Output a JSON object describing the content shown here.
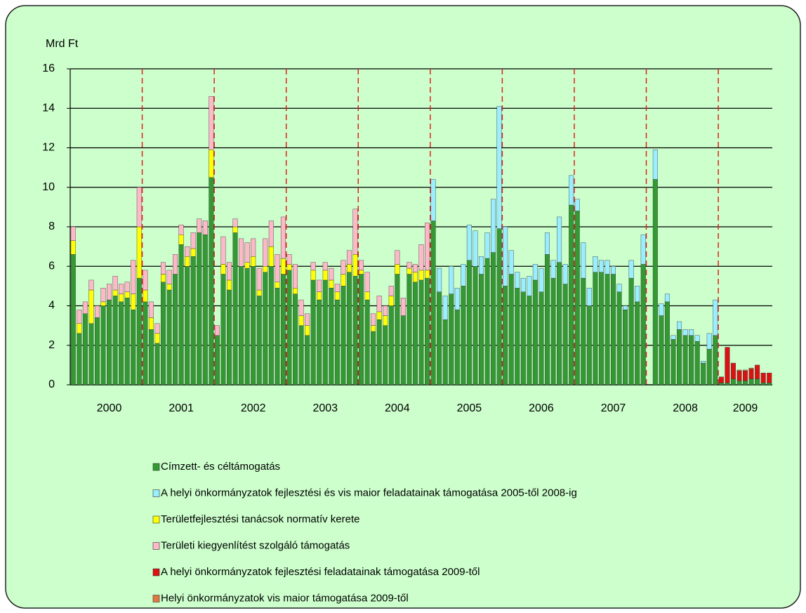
{
  "chart_data": {
    "type": "bar",
    "stacked": true,
    "y_label": "Mrd Ft",
    "ylim": [
      0,
      16
    ],
    "yticks": [
      0,
      2,
      4,
      6,
      8,
      10,
      12,
      14,
      16
    ],
    "grid": true,
    "legend": "bottom",
    "categories": [
      null,
      null,
      null,
      null,
      null,
      null,
      "2000",
      null,
      null,
      null,
      null,
      null,
      null,
      null,
      null,
      null,
      null,
      null,
      "2001",
      null,
      null,
      null,
      null,
      null,
      null,
      null,
      null,
      null,
      null,
      null,
      "2002",
      null,
      null,
      null,
      null,
      null,
      null,
      null,
      null,
      null,
      null,
      null,
      "2003",
      null,
      null,
      null,
      null,
      null,
      null,
      null,
      null,
      null,
      null,
      null,
      "2004",
      null,
      null,
      null,
      null,
      null,
      null,
      null,
      null,
      null,
      null,
      null,
      "2005",
      null,
      null,
      null,
      null,
      null,
      null,
      null,
      null,
      null,
      null,
      null,
      "2006",
      null,
      null,
      null,
      null,
      null,
      null,
      null,
      null,
      null,
      null,
      null,
      "2007",
      null,
      null,
      null,
      null,
      null,
      null,
      null,
      null,
      null,
      null,
      null,
      "2008",
      null,
      null,
      null,
      null,
      null,
      null,
      null,
      null,
      null,
      "2009",
      null,
      null,
      null,
      null
    ],
    "series": [
      {
        "name": "Címzett- és céltámogatás",
        "color": "#339933",
        "values": [
          6.6,
          2.6,
          3.6,
          3.1,
          3.4,
          4.0,
          4.3,
          4.5,
          4.2,
          4.4,
          3.8,
          5.4,
          4.2,
          2.8,
          2.1,
          5.2,
          4.8,
          5.6,
          7.1,
          6.0,
          6.5,
          7.7,
          7.6,
          10.5,
          2.5,
          5.6,
          4.8,
          7.7,
          6.0,
          5.9,
          6.0,
          4.5,
          5.7,
          6.0,
          4.9,
          5.6,
          5.8,
          4.6,
          3.0,
          2.5,
          5.3,
          4.3,
          5.3,
          4.9,
          4.3,
          5.0,
          5.7,
          5.5,
          5.6,
          4.3,
          2.7,
          3.3,
          3.0,
          4.0,
          5.6,
          3.5,
          5.6,
          5.2,
          5.3,
          5.4,
          8.3,
          4.7,
          3.3,
          4.6,
          3.8,
          5.0,
          6.3,
          6.0,
          5.6,
          6.4,
          6.7,
          7.9,
          5.0,
          5.6,
          4.9,
          4.7,
          4.5,
          5.3,
          4.7,
          6.6,
          5.4,
          6.2,
          5.1,
          9.1,
          8.8,
          5.4,
          4.0,
          5.7,
          5.7,
          5.6,
          5.6,
          4.7,
          3.8,
          5.4,
          4.2,
          6.1,
          0,
          10.4,
          3.5,
          4.2,
          2.3,
          2.8,
          2.5,
          2.5,
          2.2,
          1.1,
          1.8,
          2.5,
          0.1,
          0.1,
          0.3,
          0.2,
          0.2,
          0.3,
          0.3,
          0.1,
          0.1
        ]
      },
      {
        "name": "A helyi önkormányzatok fejlesztési és vis maior feladatainak támogatása 2005-től 2008-ig",
        "color": "#99eeff",
        "values": [
          0,
          0,
          0,
          0,
          0,
          0,
          0,
          0,
          0,
          0,
          0,
          0,
          0,
          0,
          0,
          0,
          0,
          0,
          0,
          0,
          0,
          0,
          0,
          0,
          0,
          0,
          0,
          0,
          0,
          0,
          0,
          0,
          0,
          0,
          0,
          0,
          0,
          0,
          0,
          0,
          0,
          0,
          0,
          0,
          0,
          0,
          0,
          0,
          0,
          0,
          0,
          0,
          0,
          0,
          0,
          0,
          0,
          0,
          0,
          0,
          2.1,
          1.2,
          1.2,
          1.4,
          1.1,
          1.1,
          1.8,
          1.8,
          0.9,
          1.3,
          2.7,
          6.2,
          3.0,
          1.2,
          0.8,
          0.7,
          1.0,
          0.8,
          1.2,
          1.1,
          0.9,
          2.3,
          1.0,
          1.5,
          0.6,
          1.8,
          0.9,
          0.8,
          0.6,
          0.7,
          0.4,
          0.4,
          0.2,
          0.9,
          0.8,
          1.5,
          0,
          1.5,
          0.6,
          0.4,
          0.2,
          0.4,
          0.3,
          0.3,
          0.3,
          0.1,
          0.8,
          1.8,
          0,
          0,
          0,
          0,
          0,
          0,
          0,
          0,
          0
        ]
      },
      {
        "name": "Területfejlesztési tanácsok normatív kerete",
        "color": "#ffff00",
        "values": [
          0.7,
          0.5,
          0,
          1.7,
          0,
          0.2,
          0,
          0.3,
          0.4,
          0.3,
          0.8,
          2.6,
          0.6,
          0.6,
          0.5,
          0.4,
          0.3,
          0,
          0.5,
          0.5,
          0.4,
          0,
          0,
          1.4,
          0,
          0.5,
          0.5,
          0.3,
          0,
          0.3,
          0.5,
          0.3,
          0.3,
          1.0,
          0.3,
          0.8,
          0.3,
          0.3,
          0.5,
          0.5,
          0.5,
          0.4,
          0.5,
          0.4,
          0.4,
          0.6,
          0.4,
          1.1,
          0.2,
          0.4,
          0.3,
          0.4,
          0.5,
          0.5,
          0.5,
          0,
          0.3,
          0.5,
          0.5,
          0.4,
          0,
          0,
          0,
          0,
          0,
          0,
          0,
          0,
          0,
          0,
          0,
          0,
          0,
          0,
          0,
          0,
          0,
          0,
          0,
          0,
          0,
          0,
          0,
          0,
          0,
          0,
          0,
          0,
          0,
          0,
          0,
          0,
          0,
          0,
          0,
          0,
          0,
          0,
          0,
          0,
          0,
          0,
          0,
          0,
          0,
          0,
          0,
          0,
          0,
          0,
          0,
          0,
          0,
          0,
          0,
          0,
          0
        ]
      },
      {
        "name": "Területi kiegyenlítést szolgáló támogatás",
        "color": "#ffb8c8",
        "values": [
          0.7,
          0.7,
          0.6,
          0.5,
          0.6,
          0.7,
          0.8,
          0.7,
          0.5,
          0.5,
          1.7,
          2.0,
          1.0,
          0.8,
          0.5,
          0.6,
          0.7,
          1.0,
          0.5,
          0.5,
          0.8,
          0.7,
          0.7,
          2.7,
          0.5,
          1.4,
          0.9,
          0.4,
          1.4,
          1.0,
          0.9,
          1.1,
          1.4,
          1.3,
          1.4,
          2.1,
          0.5,
          1.2,
          0.8,
          0.6,
          0.4,
          0.6,
          0.4,
          0.6,
          0.4,
          0.7,
          0.7,
          2.3,
          0.5,
          1.0,
          0.6,
          0.8,
          0.5,
          0.5,
          0.7,
          0.9,
          0.3,
          0.4,
          1.3,
          2.4,
          0,
          0,
          0,
          0,
          0,
          0,
          0,
          0,
          0,
          0,
          0,
          0,
          0,
          0,
          0,
          0,
          0,
          0,
          0,
          0,
          0,
          0,
          0,
          0,
          0,
          0,
          0,
          0,
          0,
          0,
          0,
          0,
          0,
          0,
          0,
          0,
          0,
          0,
          0,
          0,
          0,
          0,
          0,
          0,
          0,
          0,
          0,
          0,
          0,
          0,
          0,
          0,
          0,
          0,
          0,
          0,
          0
        ]
      },
      {
        "name": "A helyi önkormányzatok fejlesztési feladatainak támogatása 2009-től",
        "color": "#dd1111",
        "values": [
          0,
          0,
          0,
          0,
          0,
          0,
          0,
          0,
          0,
          0,
          0,
          0,
          0,
          0,
          0,
          0,
          0,
          0,
          0,
          0,
          0,
          0,
          0,
          0,
          0,
          0,
          0,
          0,
          0,
          0,
          0,
          0,
          0,
          0,
          0,
          0,
          0,
          0,
          0,
          0,
          0,
          0,
          0,
          0,
          0,
          0,
          0,
          0,
          0,
          0,
          0,
          0,
          0,
          0,
          0,
          0,
          0,
          0,
          0,
          0,
          0,
          0,
          0,
          0,
          0,
          0,
          0,
          0,
          0,
          0,
          0,
          0,
          0,
          0,
          0,
          0,
          0,
          0,
          0,
          0,
          0,
          0,
          0,
          0,
          0,
          0,
          0,
          0,
          0,
          0,
          0,
          0,
          0,
          0,
          0,
          0,
          0,
          0,
          0,
          0,
          0,
          0,
          0,
          0,
          0,
          0,
          0,
          0,
          0.3,
          1.8,
          0.8,
          0.5,
          0.5,
          0.5,
          0.7,
          0.5,
          0.5
        ]
      },
      {
        "name": "Helyi önkormányzatok vis maior támogatása 2009-től",
        "color": "#e07840",
        "values": [
          0,
          0,
          0,
          0,
          0,
          0,
          0,
          0,
          0,
          0,
          0,
          0,
          0,
          0,
          0,
          0,
          0,
          0,
          0,
          0,
          0,
          0,
          0,
          0,
          0,
          0,
          0,
          0,
          0,
          0,
          0,
          0,
          0,
          0,
          0,
          0,
          0,
          0,
          0,
          0,
          0,
          0,
          0,
          0,
          0,
          0,
          0,
          0,
          0,
          0,
          0,
          0,
          0,
          0,
          0,
          0,
          0,
          0,
          0,
          0,
          0,
          0,
          0,
          0,
          0,
          0,
          0,
          0,
          0,
          0,
          0,
          0,
          0,
          0,
          0,
          0,
          0,
          0,
          0,
          0,
          0,
          0,
          0,
          0,
          0,
          0,
          0,
          0,
          0,
          0,
          0,
          0,
          0,
          0,
          0,
          0,
          0,
          0,
          0,
          0,
          0,
          0,
          0,
          0,
          0,
          0,
          0,
          0,
          0,
          0,
          0,
          0.05,
          0.05,
          0.05,
          0,
          0,
          0
        ]
      }
    ]
  }
}
